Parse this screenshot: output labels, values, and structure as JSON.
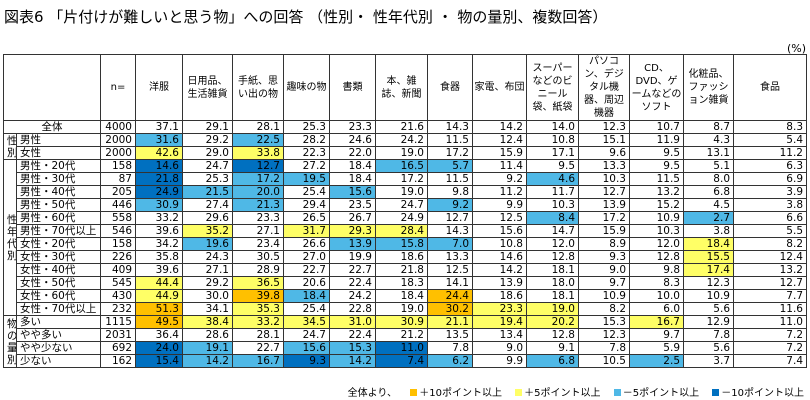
{
  "title": "図表6 「片付けが難しいと思う物」への回答 （性別・ 性年代別 ・ 物の量別、複数回答）",
  "unit": "(%)",
  "columns": [
    "n=",
    "洋服",
    "日用品、生活雑貨",
    "手紙、思い出の物",
    "趣味の物",
    "書類",
    "本、雑誌、新聞",
    "食器",
    "家電、布団",
    "スーパーなどのビニール袋、紙袋",
    "パソコン、デジタル機器、周辺機器",
    "CD、DVD、ゲームなどのソフト",
    "化粧品、ファッション雑貨",
    "食品",
    "特にない"
  ],
  "groups": {
    "sex": "性別",
    "agesex": "性年代別",
    "amount": "物の量別"
  },
  "rows": [
    {
      "label": "全体",
      "vals": [
        "4000",
        "37.1",
        "29.1",
        "28.1",
        "25.3",
        "23.3",
        "21.6",
        "14.3",
        "14.2",
        "14.0",
        "12.3",
        "10.7",
        "8.7",
        "8.3",
        "15.8"
      ],
      "hl": {}
    },
    {
      "label": "男性",
      "vals": [
        "2000",
        "31.6",
        "29.2",
        "22.5",
        "28.2",
        "24.6",
        "24.2",
        "11.5",
        "12.4",
        "10.8",
        "15.1",
        "11.9",
        "4.3",
        "5.4",
        "18.3"
      ],
      "hl": {
        "1": "c3",
        "3": "c3"
      }
    },
    {
      "label": "女性",
      "vals": [
        "2000",
        "42.6",
        "29.0",
        "33.8",
        "22.3",
        "22.0",
        "19.0",
        "17.2",
        "15.9",
        "17.1",
        "9.6",
        "9.5",
        "13.1",
        "11.2",
        "13.4"
      ],
      "hl": {
        "1": "c2",
        "3": "c2"
      }
    },
    {
      "label": "男性・20代",
      "vals": [
        "158",
        "14.6",
        "24.7",
        "12.7",
        "27.2",
        "18.4",
        "16.5",
        "5.7",
        "11.4",
        "9.5",
        "13.3",
        "9.5",
        "5.1",
        "6.3",
        "31.0"
      ],
      "hl": {
        "1": "c4",
        "3": "c4",
        "6": "c3",
        "7": "c3",
        "14": "c1"
      }
    },
    {
      "label": "男性・30代",
      "vals": [
        "87",
        "21.8",
        "25.3",
        "17.2",
        "19.5",
        "18.4",
        "17.2",
        "11.5",
        "9.2",
        "4.6",
        "10.3",
        "11.5",
        "8.0",
        "6.9",
        "31.0"
      ],
      "hl": {
        "1": "c4",
        "3": "c3",
        "4": "c3",
        "9": "c3",
        "14": "c1"
      }
    },
    {
      "label": "男性・40代",
      "vals": [
        "205",
        "24.9",
        "21.5",
        "20.0",
        "25.4",
        "15.6",
        "19.0",
        "9.8",
        "11.2",
        "11.7",
        "12.7",
        "13.2",
        "6.8",
        "3.9",
        "20.5"
      ],
      "hl": {
        "1": "c4",
        "2": "c3",
        "3": "c3",
        "5": "c3"
      }
    },
    {
      "label": "男性・50代",
      "vals": [
        "446",
        "30.9",
        "27.4",
        "21.3",
        "29.4",
        "23.5",
        "24.7",
        "9.2",
        "9.9",
        "10.3",
        "13.9",
        "15.2",
        "4.5",
        "3.8",
        "19.5"
      ],
      "hl": {
        "1": "c3",
        "3": "c3",
        "7": "c3"
      }
    },
    {
      "label": "男性・60代",
      "vals": [
        "558",
        "33.2",
        "29.6",
        "23.3",
        "26.5",
        "26.7",
        "24.9",
        "12.7",
        "12.5",
        "8.4",
        "17.2",
        "10.9",
        "2.7",
        "6.6",
        "15.9"
      ],
      "hl": {
        "9": "c3",
        "12": "c3"
      }
    },
    {
      "label": "男性・70代以上",
      "vals": [
        "546",
        "39.6",
        "35.2",
        "27.1",
        "31.7",
        "29.3",
        "28.4",
        "14.3",
        "15.6",
        "14.7",
        "15.9",
        "10.3",
        "3.8",
        "5.5",
        "13.0"
      ],
      "hl": {
        "2": "c2",
        "4": "c2",
        "5": "c2",
        "6": "c2"
      }
    },
    {
      "label": "女性・20代",
      "vals": [
        "158",
        "34.2",
        "19.6",
        "23.4",
        "26.6",
        "13.9",
        "15.8",
        "7.0",
        "10.8",
        "12.0",
        "8.9",
        "12.0",
        "18.4",
        "8.2",
        "19.6"
      ],
      "hl": {
        "2": "c3",
        "5": "c3",
        "6": "c3",
        "7": "c3",
        "12": "c2"
      }
    },
    {
      "label": "女性・30代",
      "vals": [
        "226",
        "35.8",
        "24.3",
        "30.5",
        "27.0",
        "19.9",
        "18.6",
        "13.3",
        "14.6",
        "12.8",
        "9.3",
        "12.8",
        "15.5",
        "12.4",
        "19.0"
      ],
      "hl": {
        "12": "c2"
      }
    },
    {
      "label": "女性・40代",
      "vals": [
        "409",
        "39.6",
        "27.1",
        "28.9",
        "22.7",
        "22.7",
        "21.8",
        "12.5",
        "14.2",
        "18.1",
        "9.0",
        "9.8",
        "17.4",
        "13.2",
        "14.2"
      ],
      "hl": {
        "12": "c2"
      }
    },
    {
      "label": "女性・50代",
      "vals": [
        "545",
        "44.4",
        "29.2",
        "36.5",
        "20.6",
        "22.4",
        "18.3",
        "14.1",
        "13.9",
        "18.0",
        "9.7",
        "8.3",
        "12.3",
        "12.7",
        "10.1"
      ],
      "hl": {
        "1": "c2",
        "3": "c2",
        "14": "c3"
      }
    },
    {
      "label": "女性・60代",
      "vals": [
        "430",
        "44.9",
        "30.0",
        "39.8",
        "18.4",
        "24.2",
        "18.4",
        "24.4",
        "18.6",
        "18.1",
        "10.9",
        "10.0",
        "10.9",
        "7.7",
        "12.3"
      ],
      "hl": {
        "1": "c2",
        "3": "c1",
        "4": "c3",
        "7": "c1"
      }
    },
    {
      "label": "女性・70代以上",
      "vals": [
        "232",
        "51.3",
        "34.1",
        "35.3",
        "25.4",
        "22.8",
        "19.0",
        "30.2",
        "23.3",
        "19.0",
        "8.2",
        "6.0",
        "5.6",
        "11.6",
        "12.1"
      ],
      "hl": {
        "1": "c1",
        "3": "c2",
        "7": "c1",
        "8": "c2",
        "9": "c2"
      }
    },
    {
      "label": "多い",
      "vals": [
        "1115",
        "49.5",
        "38.4",
        "33.2",
        "34.5",
        "31.0",
        "30.9",
        "21.1",
        "19.4",
        "20.2",
        "15.3",
        "16.7",
        "12.9",
        "11.0",
        "7.7"
      ],
      "hl": {
        "1": "c1",
        "2": "c2",
        "3": "c2",
        "4": "c2",
        "5": "c2",
        "6": "c2",
        "7": "c2",
        "8": "c2",
        "9": "c2",
        "11": "c2",
        "14": "c3"
      }
    },
    {
      "label": "やや多い",
      "vals": [
        "2031",
        "36.4",
        "28.6",
        "28.1",
        "24.7",
        "22.4",
        "21.2",
        "13.5",
        "13.4",
        "12.8",
        "12.3",
        "9.7",
        "7.8",
        "7.2",
        "14.7"
      ],
      "hl": {}
    },
    {
      "label": "やや少ない",
      "vals": [
        "692",
        "24.0",
        "19.1",
        "22.7",
        "15.6",
        "15.3",
        "11.0",
        "7.8",
        "9.0",
        "9.1",
        "7.8",
        "5.9",
        "5.6",
        "7.2",
        "26.4"
      ],
      "hl": {
        "1": "c4",
        "2": "c3",
        "4": "c3",
        "5": "c3",
        "6": "c4",
        "14": "c1"
      }
    },
    {
      "label": "少ない",
      "vals": [
        "162",
        "15.4",
        "14.2",
        "16.7",
        "9.3",
        "14.2",
        "7.4",
        "6.2",
        "9.9",
        "6.8",
        "10.5",
        "2.5",
        "3.7",
        "7.4",
        "40.1"
      ],
      "hl": {
        "1": "c4",
        "2": "c3",
        "3": "c3",
        "4": "c4",
        "5": "c3",
        "6": "c4",
        "7": "c3",
        "9": "c3",
        "11": "c3",
        "14": "c1"
      }
    }
  ],
  "legend": {
    "prefix": "全体より、",
    "items": [
      {
        "label": "＋10ポイント以上",
        "color": "#FFC000"
      },
      {
        "label": "＋5ポイント以上",
        "color": "#FFFF66"
      },
      {
        "label": "－5ポイント以上",
        "color": "#4FB8E6"
      },
      {
        "label": "－10ポイント以上",
        "color": "#0070C0"
      }
    ]
  }
}
